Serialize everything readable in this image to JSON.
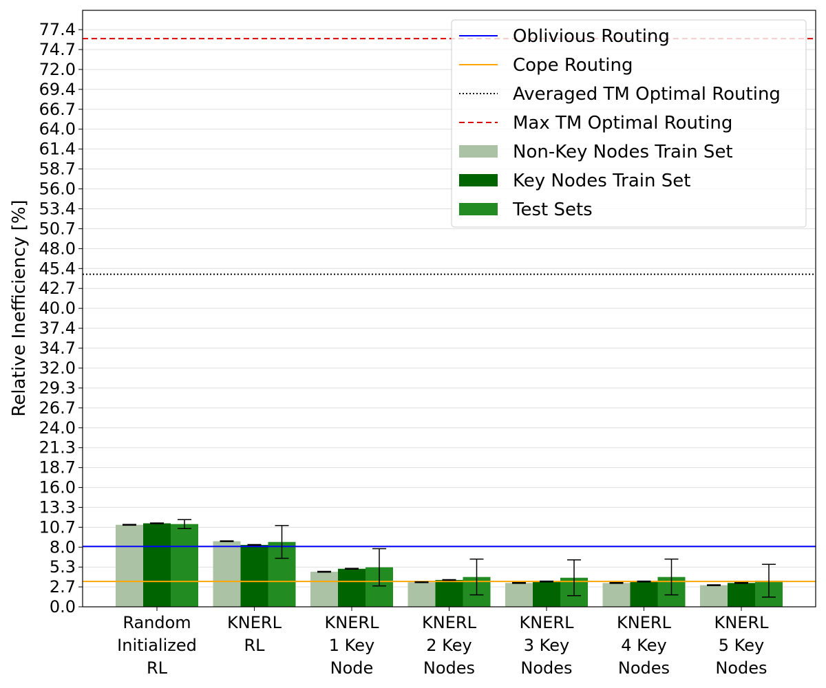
{
  "chart_data": {
    "type": "bar",
    "ylabel": "Relative Inefficiency [%]",
    "xlabel": "",
    "ylim": [
      0,
      80
    ],
    "yticks": [
      "0.0",
      "2.7",
      "5.3",
      "8.0",
      "10.7",
      "13.3",
      "16.0",
      "18.7",
      "21.3",
      "24.0",
      "26.7",
      "29.3",
      "32.0",
      "34.7",
      "37.4",
      "40.0",
      "42.7",
      "45.4",
      "48.0",
      "50.7",
      "53.4",
      "56.0",
      "58.7",
      "61.4",
      "64.0",
      "66.7",
      "69.4",
      "72.0",
      "74.7",
      "77.4"
    ],
    "ytick_values": [
      0.0,
      2.67,
      5.33,
      8.0,
      10.67,
      13.34,
      16.0,
      18.67,
      21.34,
      24.01,
      26.68,
      29.35,
      32.02,
      34.69,
      37.36,
      40.03,
      42.7,
      45.37,
      48.04,
      50.71,
      53.38,
      56.05,
      58.72,
      61.39,
      64.06,
      66.73,
      69.4,
      72.07,
      74.74,
      77.41
    ],
    "grid": "horizontal",
    "legend_position": "top-right",
    "categories": [
      [
        "Random",
        "Initialized",
        "RL"
      ],
      [
        "KNERL",
        "RL"
      ],
      [
        "KNERL",
        "1 Key",
        "Node"
      ],
      [
        "KNERL",
        "2 Key",
        "Nodes"
      ],
      [
        "KNERL",
        "3 Key",
        "Nodes"
      ],
      [
        "KNERL",
        "4 Key",
        "Nodes"
      ],
      [
        "KNERL",
        "5 Key",
        "Nodes"
      ]
    ],
    "series": [
      {
        "name": "Non-Key Nodes Train Set",
        "color": "#abc3a4",
        "values": [
          11.0,
          8.8,
          4.7,
          3.3,
          3.2,
          3.2,
          2.9
        ],
        "error": [
          0.05,
          0.05,
          0.05,
          0.05,
          0.05,
          0.05,
          0.05
        ]
      },
      {
        "name": "Key Nodes Train Set",
        "color": "#006400",
        "values": [
          11.2,
          8.3,
          5.1,
          3.6,
          3.4,
          3.4,
          3.2
        ],
        "error": [
          0.05,
          0.05,
          0.05,
          0.05,
          0.05,
          0.05,
          0.05
        ]
      },
      {
        "name": "Test Sets",
        "color": "#228b22",
        "values": [
          11.1,
          8.7,
          5.3,
          4.0,
          3.9,
          4.0,
          3.5
        ],
        "error": [
          0.6,
          2.2,
          2.5,
          2.4,
          2.4,
          2.4,
          2.2
        ]
      }
    ],
    "reference_lines": [
      {
        "name": "Oblivious Routing",
        "value": 8.1,
        "color": "#0000ff",
        "style": "solid"
      },
      {
        "name": "Cope Routing",
        "value": 3.4,
        "color": "#ffa500",
        "style": "solid"
      },
      {
        "name": "Averaged TM Optimal Routing",
        "value": 44.6,
        "color": "#000000",
        "style": "dotted"
      },
      {
        "name": "Max TM Optimal Routing",
        "value": 76.2,
        "color": "#dd0000",
        "style": "dashed"
      }
    ]
  }
}
